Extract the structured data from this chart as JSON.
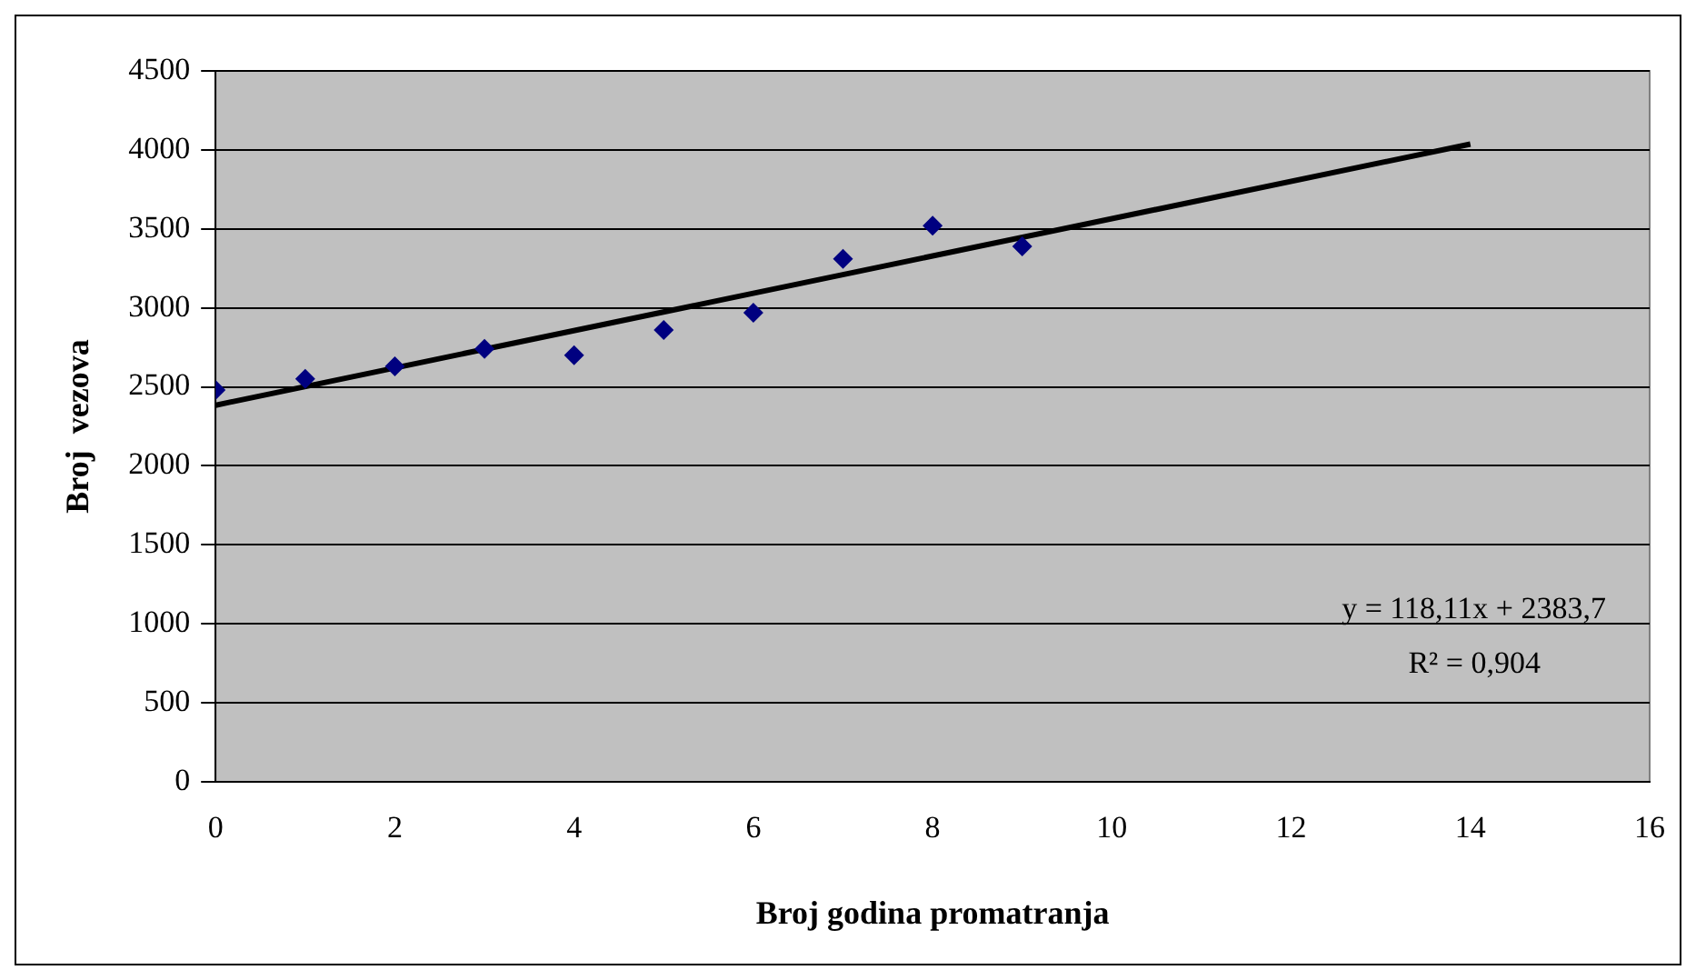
{
  "chart_data": {
    "type": "scatter",
    "xlabel": "Broj godina promatranja",
    "ylabel": "Broj  vezova",
    "x": [
      0,
      1,
      2,
      3,
      4,
      5,
      6,
      7,
      8,
      9
    ],
    "series": [
      {
        "type": "scatter",
        "marker": "diamond",
        "color": "#000080",
        "values": [
          2480,
          2550,
          2630,
          2740,
          2700,
          2860,
          2970,
          3310,
          3520,
          3390
        ]
      },
      {
        "type": "line",
        "marker": "none",
        "color": "#000000",
        "x": [
          0,
          14
        ],
        "values": [
          2384,
          4037
        ]
      }
    ],
    "xlim": [
      0,
      16
    ],
    "xticks": [
      0,
      2,
      4,
      6,
      8,
      10,
      12,
      14,
      16
    ],
    "ylim": [
      0,
      4500
    ],
    "yticks": [
      0,
      500,
      1000,
      1500,
      2000,
      2500,
      3000,
      3500,
      4000,
      4500
    ],
    "grid": "y",
    "legend": false,
    "annotations": [
      "y = 118,11x + 2383,7",
      "R² = 0,904"
    ]
  }
}
